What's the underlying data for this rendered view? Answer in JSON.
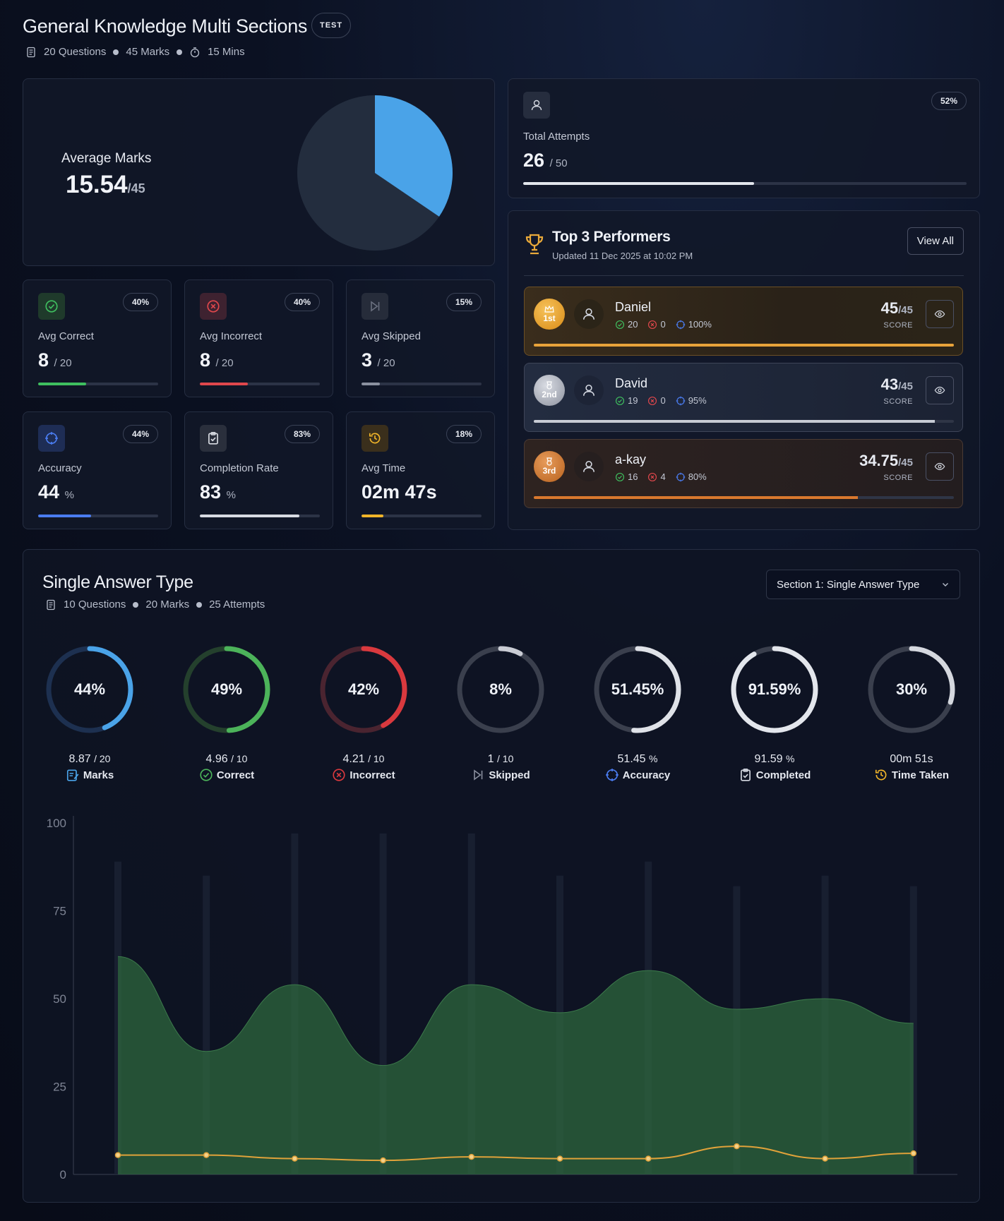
{
  "header": {
    "title": "General Knowledge Multi Sections",
    "badge": "TEST",
    "questions": "20 Questions",
    "marks": "45 Marks",
    "duration": "15 Mins"
  },
  "average": {
    "label": "Average Marks",
    "value": "15.54",
    "total": "/45",
    "fraction": 0.345
  },
  "attempts": {
    "label": "Total Attempts",
    "value": "26",
    "total": "/ 50",
    "percent": "52%",
    "fraction": 0.52
  },
  "stats": [
    {
      "label": "Avg Correct",
      "value": "8",
      "suffix": "/ 20",
      "percent": "40%",
      "fraction": 0.4,
      "color": "#3fbf5f",
      "icon": "check-circle-icon"
    },
    {
      "label": "Avg Incorrect",
      "value": "8",
      "suffix": "/ 20",
      "percent": "40%",
      "fraction": 0.4,
      "color": "#e0474c",
      "icon": "x-circle-icon"
    },
    {
      "label": "Avg Skipped",
      "value": "3",
      "suffix": "/ 20",
      "percent": "15%",
      "fraction": 0.15,
      "color": "#8b91a0",
      "icon": "skip-icon"
    },
    {
      "label": "Accuracy",
      "value": "44",
      "suffix": "%",
      "percent": "44%",
      "fraction": 0.44,
      "color": "#4a7cf0",
      "icon": "crosshair-icon"
    },
    {
      "label": "Completion Rate",
      "value": "83",
      "suffix": "%",
      "percent": "83%",
      "fraction": 0.83,
      "color": "#d8dbe2",
      "icon": "clipboard-check-icon"
    },
    {
      "label": "Avg Time",
      "value": "02m 47s",
      "suffix": "",
      "percent": "18%",
      "fraction": 0.18,
      "color": "#f0b429",
      "icon": "history-icon"
    }
  ],
  "performers": {
    "title": "Top 3 Performers",
    "updated": "Updated 11 Dec 2025 at 10:02 PM",
    "view_all": "View All",
    "score_label": "SCORE",
    "list": [
      {
        "rank": "1st",
        "name": "Daniel",
        "correct": "20",
        "incorrect": "0",
        "accuracy": "100%",
        "score": "45",
        "total": "/45",
        "fraction": 1.0
      },
      {
        "rank": "2nd",
        "name": "David",
        "correct": "19",
        "incorrect": "0",
        "accuracy": "95%",
        "score": "43",
        "total": "/45",
        "fraction": 0.955
      },
      {
        "rank": "3rd",
        "name": "a-kay",
        "correct": "16",
        "incorrect": "4",
        "accuracy": "80%",
        "score": "34.75",
        "total": "/45",
        "fraction": 0.772
      }
    ]
  },
  "section": {
    "title": "Single Answer Type",
    "questions": "10 Questions",
    "marks": "20 Marks",
    "attempts": "25 Attempts",
    "select_value": "Section 1: Single Answer Type",
    "rings": [
      {
        "percent": "44%",
        "fraction": 0.44,
        "value": "8.87",
        "suffix": "/ 20",
        "label": "Marks",
        "color": "#4aa3e8",
        "track": "#1d3050",
        "icon": "marks-icon"
      },
      {
        "percent": "49%",
        "fraction": 0.49,
        "value": "4.96",
        "suffix": "/ 10",
        "label": "Correct",
        "color": "#4cb35a",
        "track": "#24402d",
        "icon": "check-circle-icon"
      },
      {
        "percent": "42%",
        "fraction": 0.42,
        "value": "4.21",
        "suffix": "/ 10",
        "label": "Incorrect",
        "color": "#d9393e",
        "track": "#4a2430",
        "icon": "x-circle-icon"
      },
      {
        "percent": "8%",
        "fraction": 0.08,
        "value": "1",
        "suffix": "/ 10",
        "label": "Skipped",
        "color": "#c9ccd4",
        "track": "#3a3f4d",
        "icon": "skip-icon"
      },
      {
        "percent": "51.45%",
        "fraction": 0.5145,
        "value": "51.45",
        "suffix": "%",
        "label": "Accuracy",
        "color": "#dfe2e8",
        "track": "#3a3f4d",
        "icon": "crosshair-icon"
      },
      {
        "percent": "91.59%",
        "fraction": 0.9159,
        "value": "91.59",
        "suffix": "%",
        "label": "Completed",
        "color": "#e3e6ec",
        "track": "#3a3f4d",
        "icon": "clipboard-check-icon"
      },
      {
        "percent": "30%",
        "fraction": 0.3,
        "value": "00m 51s",
        "suffix": "",
        "label": "Time Taken",
        "color": "#d5d8df",
        "track": "#3a3f4d",
        "icon": "history-icon"
      }
    ]
  },
  "chart_data": {
    "type": "area",
    "ylim": [
      0,
      100
    ],
    "y_ticks": [
      0,
      25,
      50,
      75,
      100
    ],
    "grid": false,
    "series": [
      {
        "values": [
          62,
          35,
          54,
          31,
          54,
          46,
          58,
          47,
          50,
          43
        ],
        "color": "#2f6a3e"
      },
      {
        "values": [
          5.5,
          5.5,
          4.5,
          4,
          5,
          4.5,
          4.5,
          8,
          4.5,
          6
        ],
        "color": "#e0a23a"
      }
    ],
    "background_bars": [
      89,
      85,
      97,
      97,
      97,
      85,
      89,
      82,
      85,
      82
    ]
  }
}
